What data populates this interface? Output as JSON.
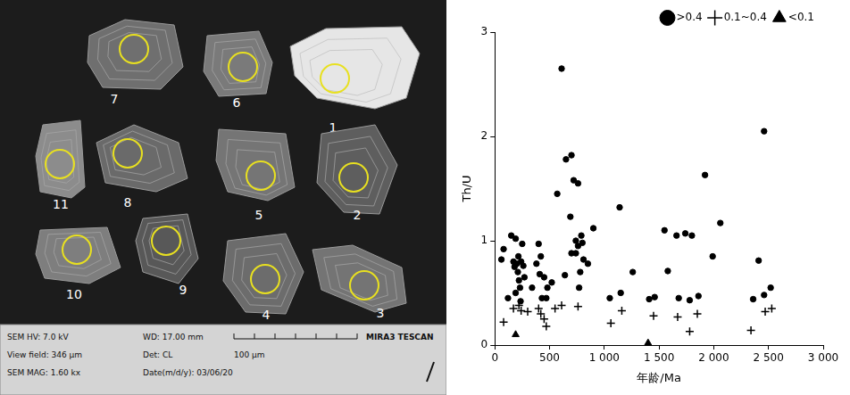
{
  "cl_image": {
    "grains": [
      {
        "label": "7"
      },
      {
        "label": "6"
      },
      {
        "label": "1"
      },
      {
        "label": "11"
      },
      {
        "label": "8"
      },
      {
        "label": "5"
      },
      {
        "label": "2"
      },
      {
        "label": "10"
      },
      {
        "label": "9"
      },
      {
        "label": "4"
      },
      {
        "label": "3"
      }
    ],
    "info_bar": {
      "row1": [
        "SEM HV: 7.0 kV",
        "WD: 17.00 mm",
        "MIRA3 TESCAN"
      ],
      "row2": [
        "View field: 346 μm",
        "Det: CL",
        "100 μm"
      ],
      "row3": [
        "SEM MAG: 1.60 kx",
        "Date(m/d/y): 03/06/20"
      ]
    }
  },
  "chart_data": {
    "type": "scatter",
    "x_label": "年龄/Ma",
    "y_label": "Th/U",
    "xlim": [
      0,
      3000
    ],
    "xticks": [
      0,
      500,
      {
        "value": 1000,
        "label": "1 000"
      },
      {
        "value": 1500,
        "label": "1 500"
      },
      {
        "value": 2000,
        "label": "2 000"
      },
      {
        "value": 2500,
        "label": "2 500"
      },
      {
        "value": 3000,
        "label": "3 000"
      }
    ],
    "ylim": [
      0,
      3
    ],
    "yticks": [
      0,
      1,
      2,
      3
    ],
    "grid": false,
    "legend": "upper right",
    "series": [
      {
        "name": ">0.4",
        "color": "#000000",
        "marker": "circle",
        "x": [
          60,
          80,
          120,
          150,
          170,
          180,
          190,
          200,
          210,
          215,
          220,
          230,
          240,
          250,
          260,
          270,
          235,
          190,
          340,
          380,
          400,
          410,
          420,
          430,
          450,
          470,
          480,
          520,
          570,
          610,
          640,
          650,
          690,
          700,
          700,
          720,
          740,
          740,
          760,
          760,
          770,
          780,
          790,
          800,
          810,
          850,
          900,
          1050,
          1140,
          1150,
          1260,
          1410,
          1460,
          1550,
          1580,
          1660,
          1680,
          1740,
          1780,
          1800,
          1860,
          1920,
          1990,
          2060,
          2360,
          2410,
          2460,
          2460,
          2520
        ],
        "values": [
          0.82,
          0.92,
          0.45,
          1.05,
          0.8,
          0.75,
          1.02,
          0.78,
          0.7,
          0.85,
          0.62,
          0.55,
          0.8,
          0.97,
          0.76,
          0.65,
          0.42,
          0.5,
          0.55,
          0.78,
          0.97,
          0.68,
          0.85,
          0.45,
          0.65,
          0.45,
          0.55,
          0.6,
          1.45,
          2.65,
          0.67,
          1.78,
          1.23,
          1.82,
          0.88,
          1.58,
          0.88,
          1.0,
          1.55,
          0.95,
          0.55,
          0.7,
          1.05,
          0.98,
          0.82,
          0.78,
          1.12,
          0.45,
          1.32,
          0.5,
          0.7,
          0.44,
          0.46,
          1.1,
          0.71,
          1.05,
          0.45,
          1.07,
          0.43,
          1.05,
          0.47,
          1.63,
          0.85,
          1.17,
          0.44,
          0.81,
          2.05,
          0.48,
          0.55
        ]
      },
      {
        "name": "0.1~0.4",
        "color": "#000000",
        "marker": "cross",
        "x": [
          80,
          170,
          220,
          240,
          300,
          400,
          420,
          450,
          470,
          550,
          610,
          760,
          1060,
          1160,
          1450,
          1670,
          1780,
          1850,
          2340,
          2470,
          2530
        ],
        "values": [
          0.22,
          0.35,
          0.38,
          0.33,
          0.32,
          0.35,
          0.3,
          0.25,
          0.18,
          0.35,
          0.38,
          0.37,
          0.21,
          0.33,
          0.28,
          0.27,
          0.13,
          0.3,
          0.14,
          0.32,
          0.35
        ]
      },
      {
        "name": "<0.1",
        "color": "#000000",
        "marker": "triangle",
        "x": [
          190,
          1400
        ],
        "values": [
          0.1,
          0.02
        ]
      }
    ]
  }
}
